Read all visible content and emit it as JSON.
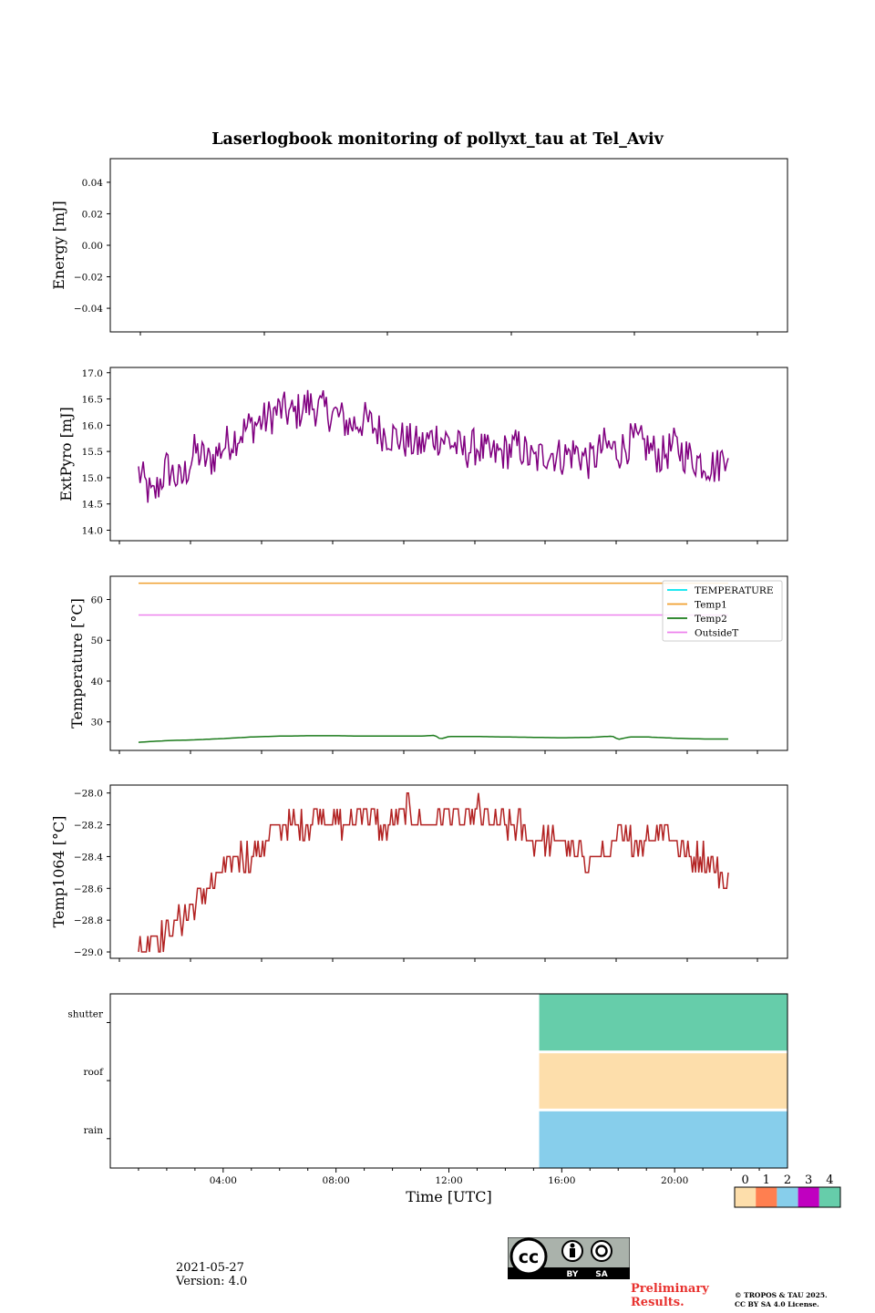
{
  "chart_data": [
    {
      "type": "line",
      "ylabel": "Energy [mJ]",
      "ylim": [
        -0.055,
        0.055
      ],
      "yticks": [
        0.04,
        0.02,
        0.0,
        -0.02,
        -0.04
      ],
      "ytick_labels": [
        "0.04",
        "0.02",
        "0.00",
        "−0.02",
        "−0.04"
      ],
      "series": []
    },
    {
      "type": "line",
      "ylabel": "ExtPyro [mJ]",
      "ylim": [
        13.8,
        17.1
      ],
      "yticks": [
        17.0,
        16.5,
        16.0,
        15.5,
        15.0,
        14.5,
        14.0
      ],
      "ytick_labels": [
        "17.0",
        "16.5",
        "16.0",
        "15.5",
        "15.0",
        "14.5",
        "14.0"
      ],
      "series": [
        {
          "color": "#800080",
          "x": [
            1.0,
            1.5,
            2.0,
            2.5,
            3.0,
            3.5,
            4.0,
            4.5,
            5.0,
            5.5,
            6.0,
            6.5,
            7.0,
            7.5,
            8.0,
            8.5,
            9.0,
            9.5,
            10.0,
            10.5,
            11.0,
            11.5,
            12.0,
            12.5,
            13.0,
            13.5,
            14.0,
            14.5,
            15.0,
            15.5,
            16.0,
            16.5,
            17.0,
            17.5,
            18.0,
            18.5,
            19.0,
            19.5,
            20.0,
            20.5,
            21.0,
            21.5,
            21.9
          ],
          "y": [
            15.1,
            14.6,
            15.2,
            14.9,
            15.5,
            15.3,
            15.6,
            15.8,
            16.0,
            16.1,
            16.3,
            16.2,
            16.4,
            16.3,
            16.2,
            16.0,
            16.1,
            15.9,
            15.8,
            15.7,
            15.6,
            15.8,
            15.7,
            15.5,
            15.6,
            15.4,
            15.5,
            15.6,
            15.3,
            15.5,
            15.4,
            15.5,
            15.3,
            15.6,
            15.5,
            15.7,
            15.6,
            15.4,
            15.6,
            15.4,
            15.3,
            15.2,
            15.6
          ]
        }
      ]
    },
    {
      "type": "line",
      "ylabel": "Temperature [°C]",
      "ylim": [
        23.0,
        65.7
      ],
      "yticks": [
        60,
        50,
        40,
        30
      ],
      "ytick_labels": [
        "60",
        "50",
        "40",
        "30"
      ],
      "legend": [
        "TEMPERATURE",
        "Temp1",
        "Temp2",
        "OutsideT"
      ],
      "legend_loc": "upper right",
      "series": [
        {
          "name": "TEMPERATURE",
          "color": "#00e5ee",
          "x": [],
          "y": []
        },
        {
          "name": "Temp1",
          "color": "#f0a030",
          "x": [
            1.0,
            21.9
          ],
          "y": [
            64.0,
            64.0
          ]
        },
        {
          "name": "Temp2",
          "color": "#1a7a1a",
          "x": [
            1.0,
            2.0,
            3.0,
            4.0,
            5.0,
            6.0,
            7.0,
            8.0,
            9.0,
            10.0,
            11.0,
            11.5,
            11.7,
            12.0,
            13.0,
            14.0,
            15.0,
            16.0,
            17.0,
            17.8,
            18.0,
            18.4,
            19.0,
            20.0,
            21.0,
            21.9
          ],
          "y": [
            25.0,
            25.4,
            25.6,
            25.9,
            26.3,
            26.5,
            26.6,
            26.6,
            26.5,
            26.5,
            26.5,
            26.7,
            25.8,
            26.4,
            26.4,
            26.3,
            26.2,
            26.1,
            26.2,
            26.5,
            25.7,
            26.3,
            26.3,
            26.0,
            25.8,
            25.8
          ]
        },
        {
          "name": "OutsideT",
          "color": "#ee82ee",
          "x": [
            1.0,
            21.9
          ],
          "y": [
            56.2,
            56.2
          ]
        }
      ]
    },
    {
      "type": "line",
      "ylabel": "Temp1064 [°C]",
      "ylim": [
        -29.04,
        -27.95
      ],
      "yticks": [
        -28.0,
        -28.2,
        -28.4,
        -28.6,
        -28.8,
        -29.0
      ],
      "ytick_labels": [
        "−28.0",
        "−28.2",
        "−28.4",
        "−28.6",
        "−28.8",
        "−29.0"
      ],
      "series": [
        {
          "color": "#b22222",
          "x": [
            1.0,
            1.5,
            2.0,
            2.5,
            3.0,
            3.5,
            4.0,
            4.5,
            5.0,
            5.5,
            6.0,
            6.5,
            7.0,
            7.5,
            8.0,
            8.5,
            9.0,
            9.5,
            10.0,
            10.5,
            11.0,
            11.5,
            12.0,
            12.5,
            13.0,
            13.5,
            14.0,
            14.5,
            15.0,
            15.5,
            16.0,
            16.5,
            17.0,
            17.5,
            18.0,
            18.5,
            19.0,
            19.5,
            20.0,
            20.5,
            21.0,
            21.5,
            21.9
          ],
          "y": [
            -29.0,
            -28.9,
            -28.9,
            -28.8,
            -28.7,
            -28.6,
            -28.5,
            -28.4,
            -28.4,
            -28.3,
            -28.2,
            -28.2,
            -28.2,
            -28.1,
            -28.2,
            -28.2,
            -28.1,
            -28.2,
            -28.2,
            -28.1,
            -28.2,
            -28.2,
            -28.1,
            -28.2,
            -28.1,
            -28.2,
            -28.2,
            -28.2,
            -28.3,
            -28.3,
            -28.3,
            -28.4,
            -28.4,
            -28.4,
            -28.3,
            -28.3,
            -28.3,
            -28.2,
            -28.3,
            -28.4,
            -28.4,
            -28.5,
            -28.6
          ]
        }
      ]
    },
    {
      "type": "heatmap",
      "xlabel": "Time [UTC]",
      "xlim": [
        0,
        24
      ],
      "xticks": [
        4,
        8,
        12,
        16,
        20
      ],
      "xtick_labels": [
        "04:00",
        "08:00",
        "12:00",
        "16:00",
        "20:00"
      ],
      "rows": [
        "shutter",
        "roof",
        "rain"
      ],
      "segments": [
        {
          "row": "shutter",
          "start": 15.2,
          "end": 24,
          "value": 4
        },
        {
          "row": "roof",
          "start": 15.2,
          "end": 24,
          "value": 0
        },
        {
          "row": "rain",
          "start": 15.2,
          "end": 24,
          "value": 2
        }
      ],
      "colorbar": {
        "labels": [
          "0",
          "1",
          "2",
          "3",
          "4"
        ],
        "colors": [
          "#fddeab",
          "#ff7f50",
          "#87ceeb",
          "#c000c0",
          "#66cdaa"
        ]
      }
    }
  ],
  "figure": {
    "title": "Laserlogbook monitoring of pollyxt_tau at Tel_Aviv",
    "date": "2021-05-27",
    "version": "Version: 4.0",
    "preliminary_line1": "Preliminary",
    "preliminary_line2": "Results.",
    "copyright_line1": "© TROPOS & TAU 2025.",
    "copyright_line2": "CC BY SA 4.0 License.",
    "cc_by": "BY",
    "cc_sa": "SA"
  }
}
